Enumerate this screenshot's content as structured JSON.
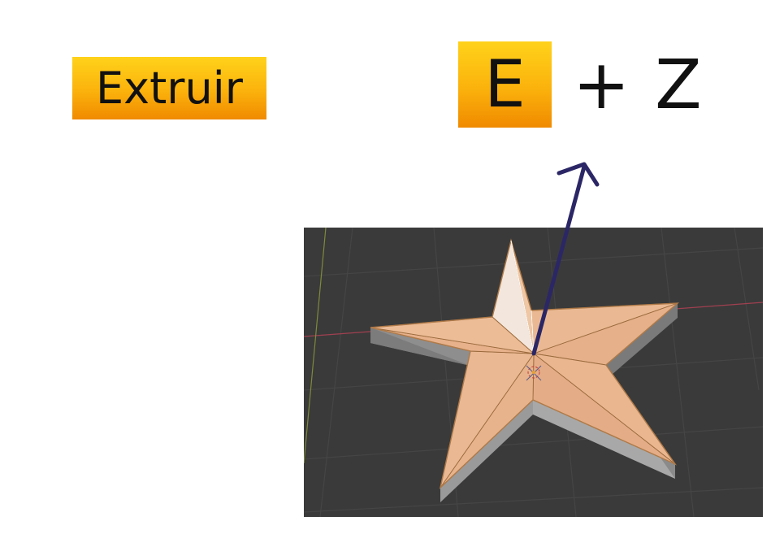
{
  "operation": {
    "label": "Extruir",
    "shortcut_key": "E",
    "shortcut_modifier": "+ Z"
  },
  "viewport": {
    "object": "star-mesh",
    "face_color": "#e7b38c",
    "side_color": "#9a9a9a",
    "background": "#3a3a3a",
    "grid_color": "#454545",
    "x_axis_color": "#a04050",
    "y_axis_color": "#7f8a3a"
  },
  "colors": {
    "badge_top": "#ffd21a",
    "badge_bottom": "#f08a00",
    "arrow": "#2b2766"
  },
  "icons": {
    "direction": "arrow-up-icon"
  }
}
